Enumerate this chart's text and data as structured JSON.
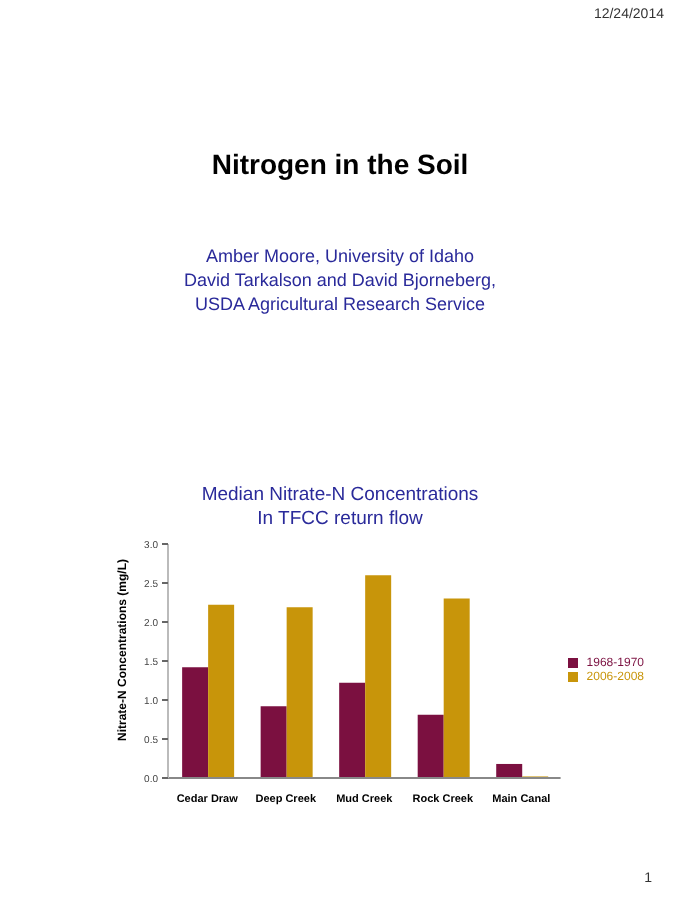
{
  "chart_data": {
    "type": "bar",
    "title": "Median Nitrate-N Concentrations\nIn TFCC return flow",
    "ylabel": "Nitrate-N Concentrations (mg/L)",
    "annotations": [
      "12/24/2014",
      "Nitrogen in the Soil",
      "Amber Moore, University of Idaho",
      "David Tarkalson and David Bjorneberg,",
      "USDA Agricultural Research Service",
      "1"
    ],
    "categories": [
      "Cedar Draw",
      "Deep Creek",
      "Mud Creek",
      "Rock Creek",
      "Main Canal"
    ],
    "series": [
      {
        "name": "1968-1970",
        "color": "#7b1040",
        "values": [
          1.42,
          0.92,
          1.22,
          0.81,
          0.18
        ]
      },
      {
        "name": "2006-2008",
        "color": "#c8950a",
        "values": [
          2.22,
          2.19,
          2.6,
          2.3,
          0.02
        ]
      }
    ],
    "ylim": [
      0,
      3
    ],
    "yticks": [
      {
        "value": 0,
        "label": "0.0"
      },
      {
        "value": 0.5,
        "label": "0.5"
      },
      {
        "value": 1,
        "label": "1.0"
      },
      {
        "value": 1.5,
        "label": "1.5"
      },
      {
        "value": 2,
        "label": "2.0"
      },
      {
        "value": 2.5,
        "label": "2.5"
      },
      {
        "value": 3,
        "label": "3.0"
      }
    ],
    "grid": false,
    "legend": "right"
  }
}
